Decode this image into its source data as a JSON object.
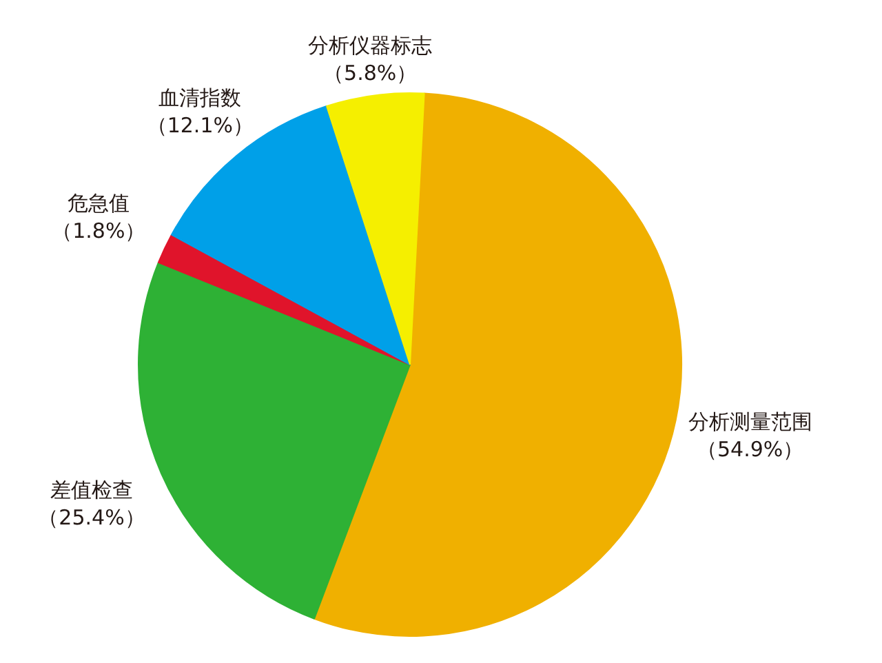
{
  "chart_data": {
    "type": "pie",
    "categories": [
      "分析测量范围",
      "差值检查",
      "危急值",
      "血清指数",
      "分析仪器标志"
    ],
    "values": [
      54.9,
      25.4,
      1.8,
      12.1,
      5.8
    ],
    "colors": [
      "#f0b000",
      "#2eb135",
      "#e0142b",
      "#00a0e8",
      "#f5ef00"
    ],
    "value_labels": [
      "（54.9%）",
      "（25.4%）",
      "（1.8%）",
      "（12.1%）",
      "（5.8%）"
    ]
  }
}
